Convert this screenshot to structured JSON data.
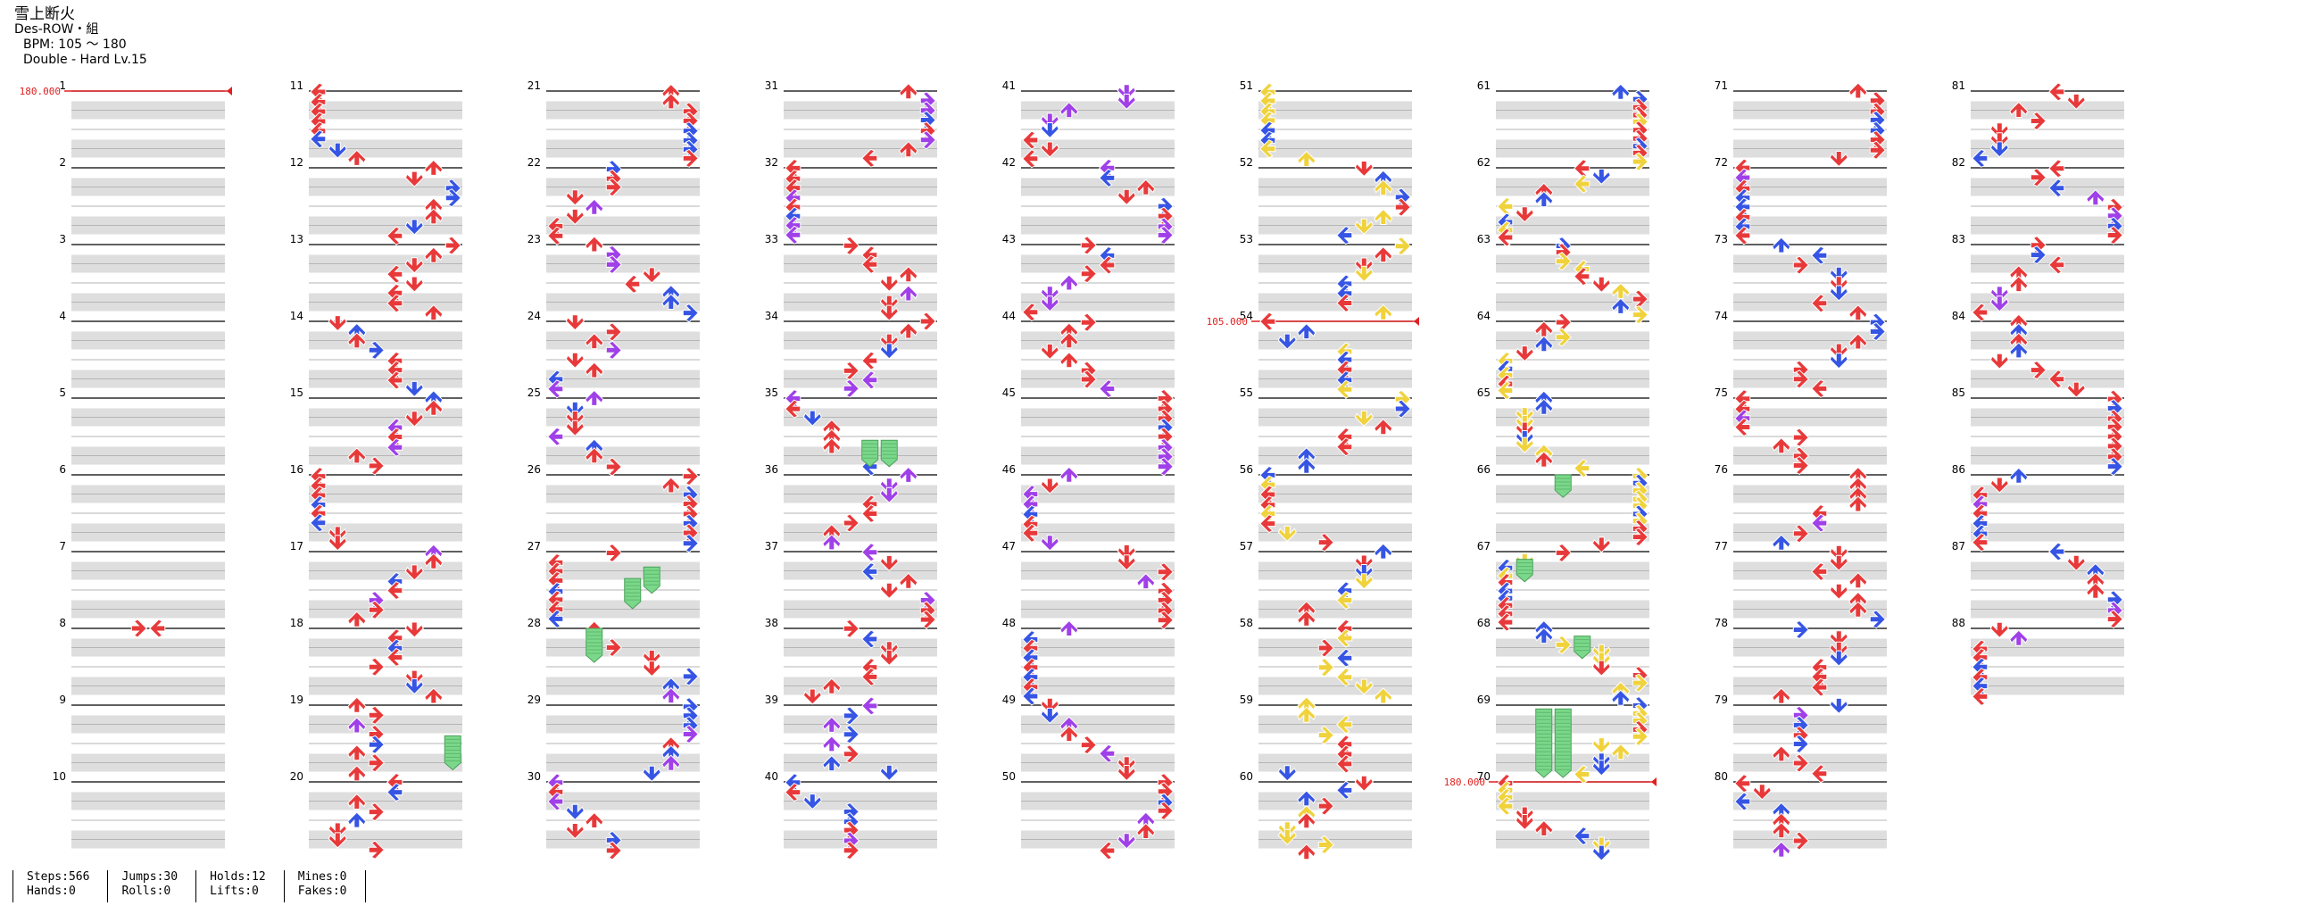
{
  "song": {
    "title": "雪上断火",
    "artist": "Des-ROW・組",
    "bpm_label": "BPM: 105 ～ 180",
    "difficulty_label": "Double - Hard Lv.15"
  },
  "stats": {
    "steps": "Steps:566",
    "hands": "Hands:0",
    "jumps": "Jumps:30",
    "rolls": "Rolls:0",
    "holds": "Holds:12",
    "lifts": "Lifts:0",
    "mines": "Mines:0",
    "fakes": "Fakes:0"
  },
  "chart_data": {
    "type": "step-chart",
    "columns": 9,
    "measures_per_column": 10,
    "total_measures": 88,
    "lanes": [
      "L-left",
      "L-down",
      "L-up",
      "L-right",
      "R-left",
      "R-down",
      "R-up",
      "R-right"
    ],
    "bpm_changes": [
      {
        "measure": 1,
        "bpm_label": "180.000"
      },
      {
        "measure": 54,
        "bpm_label": "105.000"
      },
      {
        "measure": 70,
        "bpm_label": "180.000"
      }
    ],
    "note_colors": {
      "4th": "#e8393a",
      "8th": "#3655e4",
      "12th": "#a040e8",
      "16th": "#f0d23c",
      "hold": "#7bd88a"
    }
  }
}
